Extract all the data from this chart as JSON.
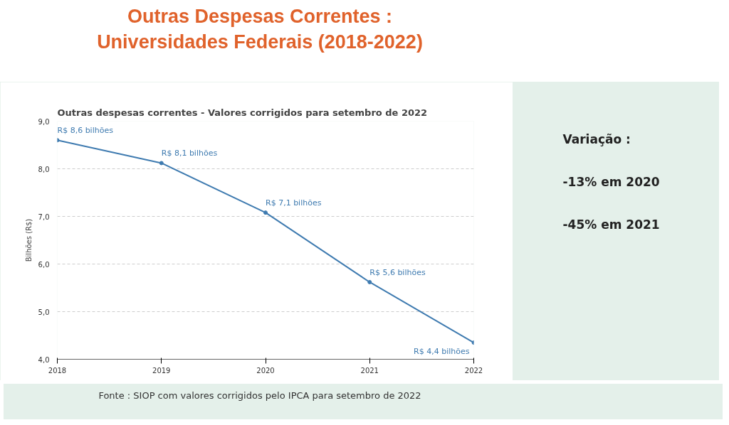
{
  "chart_data": {
    "type": "line",
    "title": "Outras Despesas Correntes :\nUniversidades Federais (2018-2022)",
    "subtitle": "Outras despesas correntes - Valores corrigidos para setembro de 2022",
    "ylabel": "Bilhões (R$)",
    "x": [
      2018,
      2019,
      2020,
      2021,
      2022
    ],
    "series": [
      {
        "color": "#3f7bb0",
        "values": [
          8.6,
          8.12,
          7.08,
          5.62,
          4.35
        ],
        "value_labels": [
          "R$ 8,6 bilhões",
          "R$ 8,1 bilhões",
          "R$ 7,1 bilhões",
          "R$ 5,6 bilhões",
          "R$ 4,4 bilhões"
        ]
      }
    ],
    "xlim": [
      2018,
      2022
    ],
    "xticks": [
      2018,
      2019,
      2020,
      2021,
      2022
    ],
    "ylim": [
      4,
      9
    ],
    "yticks": [
      {
        "value": 4,
        "label": "4,0"
      },
      {
        "value": 5,
        "label": "5,0"
      },
      {
        "value": 6,
        "label": "6,0"
      },
      {
        "value": 7,
        "label": "7,0"
      },
      {
        "value": 8,
        "label": "8,0"
      },
      {
        "value": 9,
        "label": "9,0"
      }
    ],
    "grid": "y",
    "marker": "circle",
    "line_style": "solid",
    "annotations": [
      "Variação :",
      "-13% em 2020",
      "-45% em 2021",
      "Fonte : SIOP com valores corrigidos pelo IPCA para setembro de 2022"
    ]
  }
}
